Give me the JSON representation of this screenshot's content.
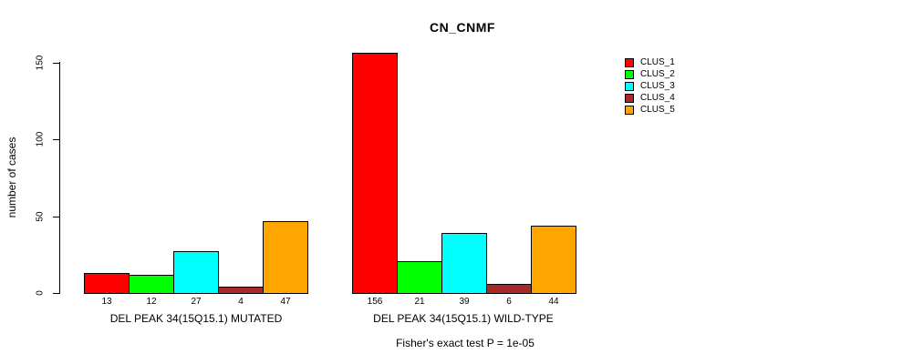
{
  "chart_data": {
    "type": "bar",
    "title": "CN_CNMF",
    "ylabel": "number of cases",
    "yticks": [
      0,
      50,
      100,
      150
    ],
    "ylim": [
      0,
      160
    ],
    "grid": false,
    "legend_position": "right",
    "categories": [
      "DEL PEAK 34(15Q15.1) MUTATED",
      "DEL PEAK 34(15Q15.1) WILD-TYPE"
    ],
    "series": [
      {
        "name": "CLUS_1",
        "color": "#FF0000",
        "values": [
          13,
          156
        ]
      },
      {
        "name": "CLUS_2",
        "color": "#00FF00",
        "values": [
          12,
          21
        ]
      },
      {
        "name": "CLUS_3",
        "color": "#00FFFF",
        "values": [
          27,
          39
        ]
      },
      {
        "name": "CLUS_4",
        "color": "#A52A2A",
        "values": [
          4,
          6
        ]
      },
      {
        "name": "CLUS_5",
        "color": "#FFA500",
        "values": [
          47,
          44
        ]
      }
    ],
    "bar_value_labels": true,
    "annotation": "Fisher's exact test P = 1e-05"
  }
}
